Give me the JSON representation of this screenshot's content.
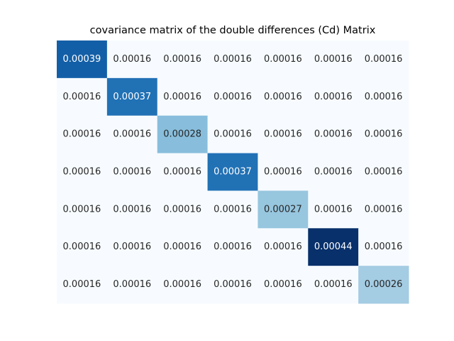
{
  "chart_data": {
    "type": "heatmap",
    "title": "covariance matrix of the double differences (Cd) Matrix",
    "colormap": "Blues",
    "colorbar": false,
    "values": [
      [
        0.00039,
        0.00016,
        0.00016,
        0.00016,
        0.00016,
        0.00016,
        0.00016
      ],
      [
        0.00016,
        0.00037,
        0.00016,
        0.00016,
        0.00016,
        0.00016,
        0.00016
      ],
      [
        0.00016,
        0.00016,
        0.00028,
        0.00016,
        0.00016,
        0.00016,
        0.00016
      ],
      [
        0.00016,
        0.00016,
        0.00016,
        0.00037,
        0.00016,
        0.00016,
        0.00016
      ],
      [
        0.00016,
        0.00016,
        0.00016,
        0.00016,
        0.00027,
        0.00016,
        0.00016
      ],
      [
        0.00016,
        0.00016,
        0.00016,
        0.00016,
        0.00016,
        0.00044,
        0.00016
      ],
      [
        0.00016,
        0.00016,
        0.00016,
        0.00016,
        0.00016,
        0.00016,
        0.00026
      ]
    ],
    "labels": [
      [
        "0.00039",
        "0.00016",
        "0.00016",
        "0.00016",
        "0.00016",
        "0.00016",
        "0.00016"
      ],
      [
        "0.00016",
        "0.00037",
        "0.00016",
        "0.00016",
        "0.00016",
        "0.00016",
        "0.00016"
      ],
      [
        "0.00016",
        "0.00016",
        "0.00028",
        "0.00016",
        "0.00016",
        "0.00016",
        "0.00016"
      ],
      [
        "0.00016",
        "0.00016",
        "0.00016",
        "0.00037",
        "0.00016",
        "0.00016",
        "0.00016"
      ],
      [
        "0.00016",
        "0.00016",
        "0.00016",
        "0.00016",
        "0.00027",
        "0.00016",
        "0.00016"
      ],
      [
        "0.00016",
        "0.00016",
        "0.00016",
        "0.00016",
        "0.00016",
        "0.00044",
        "0.00016"
      ],
      [
        "0.00016",
        "0.00016",
        "0.00016",
        "0.00016",
        "0.00016",
        "0.00016",
        "0.00026"
      ]
    ],
    "color_stops": [
      "#f7fbff",
      "#deebf7",
      "#c6dbef",
      "#9ecae1",
      "#6baed6",
      "#4292c6",
      "#2171b5",
      "#08519c",
      "#08306b"
    ],
    "text_color_light": "#ffffff",
    "text_color_dark": "#262626"
  }
}
